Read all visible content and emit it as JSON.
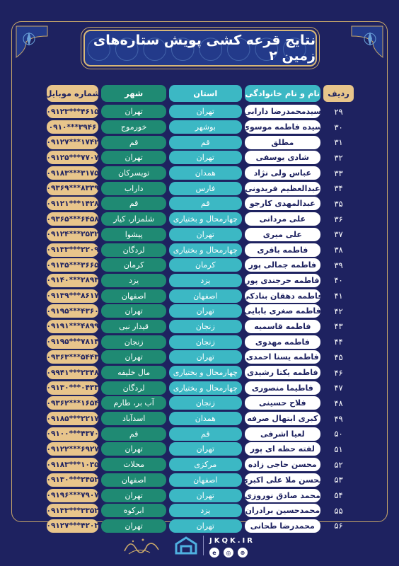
{
  "title": "نتایج قرعه کشی پویش ستاره‌های زمین ۲",
  "colors": {
    "background": "#1e2260",
    "gold": "#e8c58b",
    "teal": "#3cb8c4",
    "green": "#1f8a73"
  },
  "headers": {
    "idx": "ردیف",
    "name": "نام و نام خانوادگی",
    "province": "استان",
    "city": "شهر",
    "mobile": "شماره موبایل"
  },
  "rows": [
    {
      "idx": "۲۹",
      "name": "سیدمحمدرضا دارابی",
      "province": "تهران",
      "city": "تهران",
      "mobile": "۰۹۱۲۳***۴۶۱۵"
    },
    {
      "idx": "۳۰",
      "name": "سیده فاطمه موسوی",
      "province": "بوشهر",
      "city": "خورموج",
      "mobile": "۰۹۱۰***۳۹۴۶"
    },
    {
      "idx": "۳۱",
      "name": "مطلق",
      "province": "قم",
      "city": "قم",
      "mobile": "۰۹۱۲۷***۱۷۴۲"
    },
    {
      "idx": "۳۲",
      "name": "شادی یوسفی",
      "province": "تهران",
      "city": "تهران",
      "mobile": "۰۹۱۲۵***۷۷۰۷"
    },
    {
      "idx": "۳۳",
      "name": "عباس ولی نژاد",
      "province": "همدان",
      "city": "تویسرکان",
      "mobile": "۰۹۱۸۳***۳۱۷۵"
    },
    {
      "idx": "۳۴",
      "name": "عبدالعظیم فریدونی",
      "province": "فارس",
      "city": "داراب",
      "mobile": "۰۹۳۶۹***۸۳۳۹"
    },
    {
      "idx": "۳۵",
      "name": "عبدالمهدی کارجو",
      "province": "قم",
      "city": "قم",
      "mobile": "۰۹۱۲۱***۱۴۲۸"
    },
    {
      "idx": "۳۶",
      "name": "علی مردانی",
      "province": "چهارمحال و بختیاری",
      "city": "شلمزار، کیار",
      "mobile": "۰۹۳۶۵***۶۴۵۸"
    },
    {
      "idx": "۳۷",
      "name": "علی میری",
      "province": "تهران",
      "city": "پیشوا",
      "mobile": "۰۹۱۲۴***۲۵۳۲"
    },
    {
      "idx": "۳۸",
      "name": "فاطمه باقری",
      "province": "چهارمحال و بختیاری",
      "city": "لردگان",
      "mobile": "۰۹۱۳۳***۲۲۰۹"
    },
    {
      "idx": "۳۹",
      "name": "فاطمه جمالی پور",
      "province": "کرمان",
      "city": "کرمان",
      "mobile": "۰۹۱۳۵***۳۶۶۵"
    },
    {
      "idx": "۴۰",
      "name": "فاطمه حرجندی پور",
      "province": "یزد",
      "city": "یزد",
      "mobile": "۰۹۱۴۰***۲۸۹۳"
    },
    {
      "idx": "۴۱",
      "name": "فاطمه دهقان بنادکی",
      "province": "اصفهان",
      "city": "اصفهان",
      "mobile": "۰۹۱۳۹***۸۶۱۷"
    },
    {
      "idx": "۴۲",
      "name": "فاطمه صغری بابایی",
      "province": "تهران",
      "city": "تهران",
      "mobile": "۰۹۱۹۵***۴۳۶۰"
    },
    {
      "idx": "۴۳",
      "name": "فاطمه قاسمیه",
      "province": "زنجان",
      "city": "قیدار نبی",
      "mobile": "۰۹۱۹۱***۴۸۹۹"
    },
    {
      "idx": "۴۴",
      "name": "فاطمه مهدوی",
      "province": "زنجان",
      "city": "زنجان",
      "mobile": "۰۹۱۹۵***۷۸۱۴"
    },
    {
      "idx": "۴۵",
      "name": "فاطمه یسنا احمدی",
      "province": "تهران",
      "city": "تهران",
      "mobile": "۰۹۳۶۳***۵۴۴۳"
    },
    {
      "idx": "۴۶",
      "name": "فاطمه یکتا رشیدی",
      "province": "چهارمحال و بختیاری",
      "city": "مال خلیفه",
      "mobile": "۰۹۹۴۱***۲۳۴۸"
    },
    {
      "idx": "۴۷",
      "name": "فاطیما منصوری",
      "province": "چهارمحال و بختیاری",
      "city": "لردگان",
      "mobile": "۰۹۱۳۰***۰۴۳۳"
    },
    {
      "idx": "۴۸",
      "name": "فلاح حسینی",
      "province": "زنجان",
      "city": "آب بر، طارم",
      "mobile": "۰۹۳۶۲***۱۶۵۴"
    },
    {
      "idx": "۴۹",
      "name": "کبری ابتهال صرفه",
      "province": "همدان",
      "city": "اسدآباد",
      "mobile": "۰۹۱۸۵***۲۲۱۷"
    },
    {
      "idx": "۵۰",
      "name": "لعیا اشرفی",
      "province": "قم",
      "city": "قم",
      "mobile": "۰۹۱۰۰***۴۳۷۰"
    },
    {
      "idx": "۵۱",
      "name": "لفته حظه ای پور",
      "province": "تهران",
      "city": "تهران",
      "mobile": "۰۹۱۲۲***۶۹۲۷"
    },
    {
      "idx": "۵۲",
      "name": "محسن حاجی زاده",
      "province": "مرکزی",
      "city": "محلات",
      "mobile": "۰۹۱۸۳***۱۰۳۵"
    },
    {
      "idx": "۵۳",
      "name": "محسن ملا علی اکبری",
      "province": "اصفهان",
      "city": "اصفهان",
      "mobile": "۰۹۱۳۰***۲۴۵۲"
    },
    {
      "idx": "۵۴",
      "name": "محمد صادق نوروزی",
      "province": "تهران",
      "city": "تهران",
      "mobile": "۰۹۱۹۶***۷۹۰۷"
    },
    {
      "idx": "۵۵",
      "name": "محمدحسین برادران",
      "province": "یزد",
      "city": "ابرکوه",
      "mobile": "۰۹۱۳۳***۳۳۵۲"
    },
    {
      "idx": "۵۶",
      "name": "محمدرضا طحانی",
      "province": "تهران",
      "city": "تهران",
      "mobile": "۰۹۱۲۷***۴۲۰۲"
    }
  ],
  "footer": {
    "site": "JKQK.IR",
    "icons": [
      "globe-icon",
      "instagram-icon",
      "eitaa-icon"
    ]
  }
}
